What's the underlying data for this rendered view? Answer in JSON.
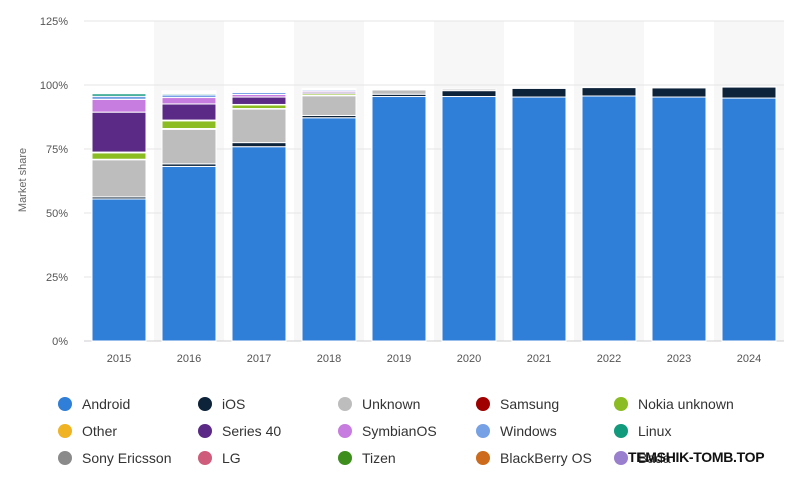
{
  "chart_data": {
    "type": "stacked-bar",
    "ylabel": "Market share",
    "ylim": [
      0,
      125
    ],
    "yticks": [
      0,
      25,
      50,
      75,
      100,
      125
    ],
    "ytick_labels": [
      "0%",
      "25%",
      "50%",
      "75%",
      "100%",
      "125%"
    ],
    "categories": [
      "2015",
      "2016",
      "2017",
      "2018",
      "2019",
      "2020",
      "2021",
      "2022",
      "2023",
      "2024"
    ],
    "legend_placement": "bottom",
    "series": [
      {
        "name": "Android",
        "color": "#2f7ed8",
        "values": [
          55.5,
          68.2,
          75.9,
          87.2,
          95.5,
          95.5,
          95.3,
          95.7,
          95.3,
          94.9
        ]
      },
      {
        "name": "iOS",
        "color": "#0d233a",
        "values": [
          0.8,
          1.0,
          1.6,
          0.9,
          0.9,
          2.3,
          3.4,
          3.3,
          3.6,
          4.3
        ]
      },
      {
        "name": "Unknown",
        "color": "#bdbdbd",
        "values": [
          14.5,
          13.5,
          13.1,
          7.7,
          1.7,
          0.6,
          0.4,
          0.3,
          0.3,
          0.2
        ]
      },
      {
        "name": "Samsung",
        "color": "#a00000",
        "values": [
          0.2,
          0.3,
          0.2,
          0.1,
          0.1,
          0.0,
          0.0,
          0.0,
          0.0,
          0.0
        ]
      },
      {
        "name": "Nokia unknown",
        "color": "#8bbc21",
        "values": [
          2.5,
          3.0,
          1.4,
          0.6,
          0.1,
          0.0,
          0.0,
          0.0,
          0.0,
          0.0
        ]
      },
      {
        "name": "Other",
        "color": "#f0b323",
        "values": [
          0.3,
          0.3,
          0.2,
          0.1,
          0.0,
          0.0,
          0.0,
          0.0,
          0.0,
          0.0
        ]
      },
      {
        "name": "Series 40",
        "color": "#5b2a86",
        "values": [
          15.6,
          6.3,
          2.9,
          0.6,
          0.1,
          0.0,
          0.0,
          0.0,
          0.0,
          0.0
        ]
      },
      {
        "name": "SymbianOS",
        "color": "#c77cdf",
        "values": [
          5.0,
          2.5,
          1.0,
          0.5,
          0.1,
          0.0,
          0.0,
          0.0,
          0.0,
          0.0
        ]
      },
      {
        "name": "Windows",
        "color": "#77a1e5",
        "values": [
          1.2,
          1.0,
          0.8,
          0.5,
          0.2,
          0.0,
          0.0,
          0.0,
          0.0,
          0.0
        ]
      },
      {
        "name": "Linux",
        "color": "#129a7d",
        "values": [
          1.0,
          0.5,
          0.4,
          0.2,
          0.1,
          0.0,
          0.0,
          0.0,
          0.0,
          0.0
        ]
      },
      {
        "name": "Sony Ericsson",
        "color": "#8a8a8a",
        "values": [
          0.4,
          0.4,
          0.2,
          0.1,
          0.0,
          0.0,
          0.0,
          0.0,
          0.0,
          0.0
        ]
      },
      {
        "name": "LG",
        "color": "#d05c7b",
        "values": [
          0.2,
          0.2,
          0.1,
          0.1,
          0.0,
          0.0,
          0.0,
          0.0,
          0.0,
          0.0
        ]
      },
      {
        "name": "Tizen",
        "color": "#3e8e1e",
        "values": [
          0.1,
          0.2,
          0.1,
          0.0,
          0.0,
          0.0,
          0.0,
          0.0,
          0.0,
          0.0
        ]
      },
      {
        "name": "BlackBerry OS",
        "color": "#cc6b1b",
        "values": [
          0.3,
          0.2,
          0.1,
          0.1,
          0.0,
          0.0,
          0.0,
          0.0,
          0.0,
          0.0
        ]
      },
      {
        "name": "Bada",
        "color": "#9b7fcf",
        "values": [
          0.2,
          0.1,
          0.1,
          0.0,
          0.0,
          0.0,
          0.0,
          0.0,
          0.0,
          0.0
        ]
      }
    ]
  },
  "watermark": "TEMSHIK-TOMB.TOP"
}
